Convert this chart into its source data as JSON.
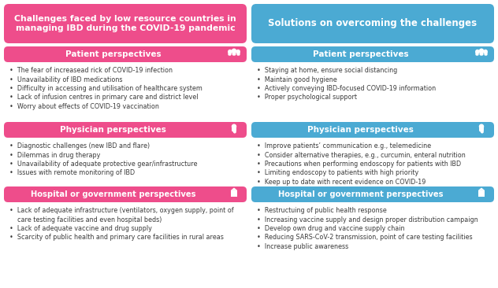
{
  "title_left": "Challenges faced by low resource countries in\nmanaging IBD during the COVID-19 pandemic",
  "title_right": "Solutions on overcoming the challenges",
  "left_color": "#EE4D8B",
  "right_color": "#4BAAD3",
  "left_patient_header": "Patient perspectives",
  "left_patient_items": [
    "The fear of increasead rick of COVID-19 infection",
    "Unavailability of IBD medications",
    "Difficulty in accessing and utilisation of healthcare system",
    "Lack of infusion centres in primary care and district level",
    "Worry about effects of COVID-19 vaccination"
  ],
  "right_patient_header": "Patient perspectives",
  "right_patient_items": [
    "Staying at home, ensure social distancing",
    "Maintain good hygiene",
    "Actively conveying IBD-focused COVID-19 information",
    "Proper psychological support"
  ],
  "left_physician_header": "Physician perspectives",
  "left_physician_items": [
    "Diagnostic challenges (new IBD and flare)",
    "Dilemmas in drug therapy",
    "Unavailability of adequate protective gear/infrastructure",
    "Issues with remote monitoring of IBD"
  ],
  "right_physician_header": "Physician perspectives",
  "right_physician_items": [
    "Improve patients’ communication e.g., telemedicine",
    "Consider alternative therapies, e.g., curcumin, enteral nutrition",
    "Precautions when performing endoscopy for patients with IBD",
    "Limiting endoscopy to patients with high priority",
    "Keep up to date with recent evidence on COVID-19"
  ],
  "left_hospital_header": "Hospital or government perspectives",
  "left_hospital_items": [
    "Lack of adequate infrastructure (ventilators, oxygen supply, point of\ncare testing facilities and even hospital beds)",
    "Lack of adequate vaccine and drug supply",
    "Scarcity of public health and primary care facilities in rural areas"
  ],
  "right_hospital_header": "Hospital or government perspectives",
  "right_hospital_items": [
    "Restructuing of public health response",
    "Increasing vaccine supply and design proper distribution campaign",
    "Develop own drug and vaccine supply chain",
    "Reducing SARS-CoV-2 transmission, point of care testing facilities",
    "Increase public awareness"
  ],
  "white": "#FFFFFF",
  "dark": "#3A3A3A",
  "bg": "#FFFFFF"
}
